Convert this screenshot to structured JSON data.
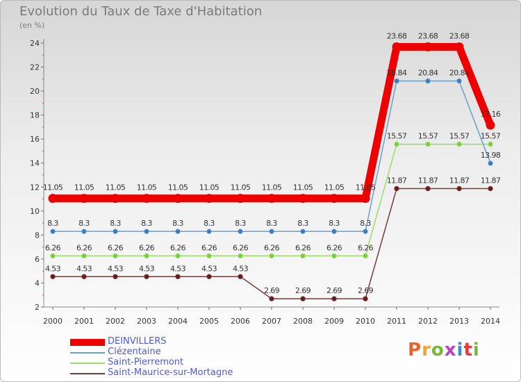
{
  "header": {
    "title": "Evolution du Taux de Taxe d'Habitation",
    "unit": "(en %)"
  },
  "logo": {
    "text": "Proxiti",
    "colors": [
      "#e8642a",
      "#f2a32e",
      "#7ab83a",
      "#c03ec0",
      "#3a8ed8",
      "#e83a3a",
      "#7ab83a"
    ]
  },
  "chart_data": {
    "type": "line",
    "categories": [
      "2000",
      "2001",
      "2002",
      "2003",
      "2004",
      "2005",
      "2006",
      "2007",
      "2008",
      "2009",
      "2010",
      "2011",
      "2012",
      "2013",
      "2014"
    ],
    "ylim": [
      2,
      24
    ],
    "yticks": [
      2,
      4,
      6,
      8,
      10,
      12,
      14,
      16,
      18,
      20,
      22,
      24
    ],
    "grid": false,
    "legend_position": "bottom-left",
    "series": [
      {
        "name": "DEINVILLERS",
        "color": "#ee0000",
        "highlight": true,
        "values": [
          11.05,
          11.05,
          11.05,
          11.05,
          11.05,
          11.05,
          11.05,
          11.05,
          11.05,
          11.05,
          11.05,
          23.68,
          23.68,
          23.68,
          17.16
        ],
        "labels": [
          "11.05",
          "11.05",
          "11.05",
          "11.05",
          "11.05",
          "11.05",
          "11.05",
          "11.05",
          "11.05",
          "11.05",
          "11.05",
          "23.68",
          "23.68",
          "23.68",
          "17.16"
        ]
      },
      {
        "name": "Clézentaine",
        "color": "#6a9ecf",
        "marker": "#3a7ab8",
        "values": [
          8.3,
          8.3,
          8.3,
          8.3,
          8.3,
          8.3,
          8.3,
          8.3,
          8.3,
          8.3,
          8.3,
          20.84,
          20.84,
          20.84,
          13.98
        ],
        "labels": [
          "8.3",
          "8.3",
          "8.3",
          "8.3",
          "8.3",
          "8.3",
          "8.3",
          "8.3",
          "8.3",
          "8.3",
          "8.3",
          "20.84",
          "20.84",
          "20.84",
          "13.98"
        ]
      },
      {
        "name": "Saint-Pierremont",
        "color": "#99dd66",
        "marker": "#7acc3a",
        "values": [
          6.26,
          6.26,
          6.26,
          6.26,
          6.26,
          6.26,
          6.26,
          6.26,
          6.26,
          6.26,
          6.26,
          15.57,
          15.57,
          15.57,
          15.57
        ],
        "labels": [
          "6.26",
          "6.26",
          "6.26",
          "6.26",
          "6.26",
          "6.26",
          "6.26",
          "6.26",
          "6.26",
          "6.26",
          "6.26",
          "15.57",
          "15.57",
          "15.57",
          "15.57"
        ]
      },
      {
        "name": "Saint-Maurice-sur-Mortagne",
        "color": "#7a3a3a",
        "marker": "#6a1a1a",
        "values": [
          4.53,
          4.53,
          4.53,
          4.53,
          4.53,
          4.53,
          4.53,
          2.69,
          2.69,
          2.69,
          2.69,
          11.87,
          11.87,
          11.87,
          11.87
        ],
        "labels": [
          "4.53",
          "4.53",
          "4.53",
          "4.53",
          "4.53",
          "4.53",
          "4.53",
          "2.69",
          "2.69",
          "2.69",
          "2.69",
          "11.87",
          "11.87",
          "11.87",
          "11.87"
        ]
      }
    ]
  }
}
